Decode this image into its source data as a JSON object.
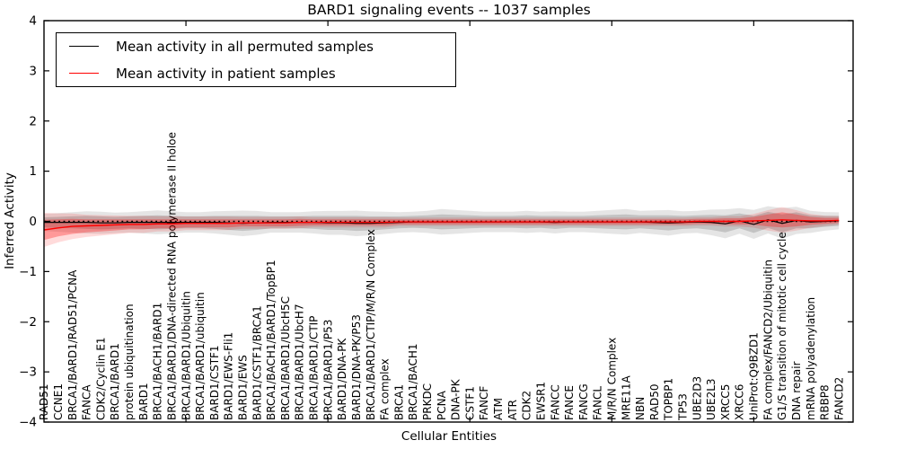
{
  "figure": {
    "title": "BARD1 signaling events -- 1037 samples",
    "xlabel": "Cellular Entities",
    "ylabel": "Inferred Activity"
  },
  "legend": {
    "position": "upper left",
    "items": [
      {
        "label": "Mean activity in all permuted samples",
        "color": "#000000"
      },
      {
        "label": "Mean activity in patient samples",
        "color": "#ff0000"
      }
    ]
  },
  "chart_data": {
    "type": "line",
    "title": "BARD1 signaling events -- 1037 samples",
    "xlabel": "Cellular Entities",
    "ylabel": "Inferred Activity",
    "ylim": [
      -4,
      4
    ],
    "yticks": [
      4,
      3,
      2,
      1,
      0,
      -1,
      -2,
      -3,
      -4
    ],
    "xticks": [
      10,
      20,
      30,
      40,
      50
    ],
    "grid": false,
    "legend_position": "upper left",
    "categories": [
      "RAD51",
      "CCNE1",
      "BRCA1/BARD1/RAD51/PCNA",
      "FANCA",
      "CDK2/Cyclin E1",
      "BRCA1/BARD1",
      "protein ubiquitination",
      "BARD1",
      "BRCA1/BACH1/BARD1",
      "BRCA1/BARD1/DNA-directed RNA polymerase II holoe",
      "BRCA1/BARD1/Ubiquitin",
      "BRCA1/BARD1/ubiquitin",
      "BARD1/CSTF1",
      "BARD1/EWS-Fli1",
      "BARD1/EWS",
      "BARD1/CSTF1/BRCA1",
      "BRCA1/BACH1/BARD1/TopBP1",
      "BRCA1/BARD1/UbcH5C",
      "BRCA1/BARD1/UbcH7",
      "BRCA1/BARD1/CTIP",
      "BRCA1/BARD1/P53",
      "BARD1/DNA-PK",
      "BARD1/DNA-PK/P53",
      "BRCA1/BARD1/CTIP/M/R/N Complex",
      "FA complex",
      "BRCA1",
      "BRCA1/BACH1",
      "PRKDC",
      "PCNA",
      "DNA-PK",
      "CSTF1",
      "FANCF",
      "ATM",
      "ATR",
      "CDK2",
      "EWSR1",
      "FANCC",
      "FANCE",
      "FANCG",
      "FANCL",
      "M/R/N Complex",
      "MRE11A",
      "NBN",
      "RAD50",
      "TOPBP1",
      "TP53",
      "UBE2D3",
      "UBE2L3",
      "XRCC5",
      "XRCC6",
      "UniProt:Q9BZD1",
      "FA complex/FANCD2/Ubiquitin",
      "G1/S transition of mitotic cell cycle",
      "DNA repair",
      "mRNA polyadenylation",
      "RBBP8",
      "FANCD2"
    ],
    "series": [
      {
        "name": "Mean activity in all permuted samples",
        "color": "#000000",
        "band_color": "0,0,0",
        "values": [
          -0.02,
          -0.02,
          -0.02,
          -0.02,
          -0.03,
          -0.03,
          -0.02,
          -0.02,
          -0.02,
          -0.02,
          -0.02,
          -0.02,
          -0.02,
          -0.03,
          -0.04,
          -0.03,
          -0.02,
          -0.02,
          -0.02,
          -0.02,
          -0.03,
          -0.03,
          -0.04,
          -0.04,
          -0.03,
          -0.02,
          -0.01,
          -0.01,
          -0.01,
          -0.01,
          -0.01,
          -0.01,
          -0.01,
          -0.01,
          -0.01,
          -0.01,
          -0.02,
          -0.01,
          -0.01,
          -0.01,
          -0.01,
          -0.01,
          -0.01,
          -0.02,
          -0.03,
          -0.02,
          -0.01,
          -0.02,
          -0.05,
          0.01,
          -0.06,
          0.03,
          -0.04,
          0.02,
          -0.01,
          0.0,
          0.01
        ],
        "std": [
          0.1,
          0.11,
          0.12,
          0.13,
          0.13,
          0.12,
          0.12,
          0.13,
          0.14,
          0.13,
          0.12,
          0.12,
          0.13,
          0.14,
          0.15,
          0.14,
          0.12,
          0.12,
          0.12,
          0.13,
          0.14,
          0.14,
          0.15,
          0.14,
          0.13,
          0.12,
          0.12,
          0.13,
          0.15,
          0.14,
          0.13,
          0.12,
          0.12,
          0.12,
          0.13,
          0.12,
          0.13,
          0.12,
          0.12,
          0.13,
          0.14,
          0.15,
          0.13,
          0.14,
          0.15,
          0.13,
          0.13,
          0.15,
          0.17,
          0.15,
          0.17,
          0.16,
          0.18,
          0.16,
          0.13,
          0.11,
          0.1
        ]
      },
      {
        "name": "Mean activity in patient samples",
        "color": "#ff0000",
        "band_color": "255,0,0",
        "values": [
          -0.17,
          -0.13,
          -0.1,
          -0.09,
          -0.08,
          -0.07,
          -0.06,
          -0.06,
          -0.05,
          -0.05,
          -0.04,
          -0.04,
          -0.04,
          -0.04,
          -0.03,
          -0.03,
          -0.03,
          -0.03,
          -0.02,
          -0.02,
          -0.02,
          -0.02,
          -0.02,
          -0.02,
          -0.02,
          -0.01,
          -0.01,
          -0.01,
          -0.01,
          -0.01,
          -0.01,
          -0.01,
          -0.01,
          -0.01,
          -0.01,
          -0.01,
          -0.01,
          -0.01,
          -0.01,
          -0.01,
          -0.01,
          -0.01,
          -0.01,
          -0.01,
          -0.01,
          -0.01,
          0.0,
          0.0,
          0.0,
          0.0,
          0.01,
          0.02,
          0.03,
          0.02,
          0.01,
          0.01,
          0.02
        ],
        "std": [
          0.2,
          0.17,
          0.15,
          0.13,
          0.12,
          0.11,
          0.1,
          0.1,
          0.09,
          0.09,
          0.08,
          0.08,
          0.08,
          0.08,
          0.07,
          0.07,
          0.07,
          0.07,
          0.07,
          0.06,
          0.06,
          0.06,
          0.06,
          0.06,
          0.06,
          0.05,
          0.05,
          0.05,
          0.05,
          0.05,
          0.05,
          0.05,
          0.05,
          0.05,
          0.05,
          0.05,
          0.05,
          0.05,
          0.05,
          0.05,
          0.05,
          0.05,
          0.05,
          0.05,
          0.05,
          0.05,
          0.05,
          0.05,
          0.06,
          0.06,
          0.08,
          0.12,
          0.15,
          0.12,
          0.08,
          0.06,
          0.05
        ]
      }
    ],
    "zero_line": {
      "y": 0,
      "style": "dotted",
      "color": "#000000"
    }
  }
}
